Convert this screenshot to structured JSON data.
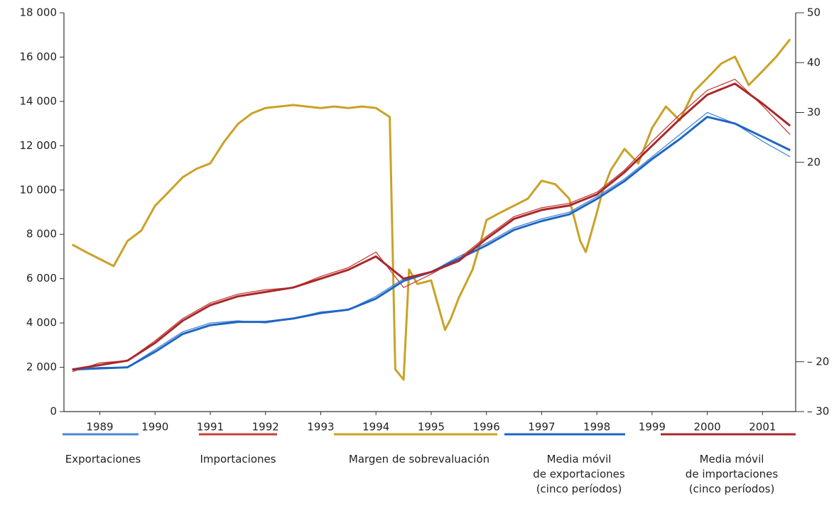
{
  "chart_data": {
    "type": "line",
    "xlim": [
      1988.85,
      2002.1
    ],
    "xticks": [
      {
        "value": 1989.5,
        "label": "1989"
      },
      {
        "value": 1990.5,
        "label": "1990"
      },
      {
        "value": 1991.5,
        "label": "1991"
      },
      {
        "value": 1992.5,
        "label": "1992"
      },
      {
        "value": 1993.5,
        "label": "1993"
      },
      {
        "value": 1994.5,
        "label": "1994"
      },
      {
        "value": 1995.5,
        "label": "1995"
      },
      {
        "value": 1996.5,
        "label": "1996"
      },
      {
        "value": 1997.5,
        "label": "1997"
      },
      {
        "value": 1998.5,
        "label": "1998"
      },
      {
        "value": 1999.5,
        "label": "1999"
      },
      {
        "value": 2000.5,
        "label": "2000"
      },
      {
        "value": 2001.5,
        "label": "2001"
      }
    ],
    "ylim": [
      0,
      18000
    ],
    "yticks": [
      0,
      {
        "value": 2000,
        "label": "2 000"
      },
      {
        "value": 4000,
        "label": "4 000"
      },
      {
        "value": 6000,
        "label": "6 000"
      },
      {
        "value": 8000,
        "label": "8 000"
      },
      {
        "value": 10000,
        "label": "10 000"
      },
      {
        "value": 12000,
        "label": "12 000"
      },
      {
        "value": 14000,
        "label": "14 000"
      },
      {
        "value": 16000,
        "label": "16 000"
      },
      {
        "value": 18000,
        "label": "18 000"
      }
    ],
    "y2lim": [
      -30,
      50
    ],
    "y2ticks": [
      {
        "value": -30,
        "label": "– 30"
      },
      {
        "value": -20,
        "label": "– 20"
      },
      20,
      30,
      40,
      50
    ],
    "x": [
      1989.0,
      1989.5,
      1990.0,
      1990.5,
      1991.0,
      1991.5,
      1992.0,
      1992.5,
      1993.0,
      1993.5,
      1994.0,
      1994.5,
      1995.0,
      1995.5,
      1996.0,
      1996.5,
      1997.0,
      1997.5,
      1998.0,
      1998.5,
      1999.0,
      1999.5,
      2000.0,
      2000.5,
      2001.0,
      2001.5,
      2002.0
    ],
    "series": [
      {
        "name": "Exportaciones",
        "color": "#4a86d6",
        "width": 1.3,
        "values": [
          1900,
          2000,
          2000,
          2800,
          3600,
          4000,
          4100,
          4000,
          4200,
          4500,
          4600,
          5200,
          6000,
          6300,
          7000,
          7600,
          8300,
          8700,
          9000,
          9700,
          10500,
          11500,
          12500,
          13500,
          13000,
          12200,
          11500
        ]
      },
      {
        "name": "Importaciones",
        "color": "#c8403a",
        "width": 1.3,
        "values": [
          1800,
          2200,
          2300,
          3200,
          4200,
          4900,
          5300,
          5500,
          5600,
          6100,
          6500,
          7200,
          5600,
          6200,
          6900,
          7900,
          8800,
          9200,
          9400,
          9900,
          10900,
          12200,
          13400,
          14500,
          15000,
          13800,
          12500
        ]
      },
      {
        "name": "Margen de sobrevaluación",
        "color": "#c9a227",
        "width": 3,
        "axis": "y2",
        "x": [
          1989.0,
          1989.25,
          1989.5,
          1989.75,
          1990.0,
          1990.25,
          1990.5,
          1990.75,
          1991.0,
          1991.25,
          1991.5,
          1991.75,
          1992.0,
          1992.25,
          1992.5,
          1992.75,
          1993.0,
          1993.25,
          1993.5,
          1993.75,
          1994.0,
          1994.25,
          1994.5,
          1994.75,
          1994.85,
          1995.0,
          1995.1,
          1995.25,
          1995.5,
          1995.75,
          1995.85,
          1996.0,
          1996.25,
          1996.4,
          1996.5,
          1996.75,
          1997.0,
          1997.25,
          1997.5,
          1997.75,
          1998.0,
          1998.2,
          1998.3,
          1998.5,
          1998.6,
          1998.75,
          1999.0,
          1999.25,
          1999.5,
          1999.75,
          2000.0,
          2000.25,
          2000.5,
          2000.75,
          2001.0,
          2001.25,
          2001.5,
          2001.75,
          2002.0
        ],
        "values": [
          3.5,
          2.0,
          0.6,
          -0.8,
          4.2,
          6.3,
          11.3,
          14.1,
          17.0,
          18.7,
          19.8,
          24.1,
          27.7,
          29.8,
          30.9,
          31.2,
          31.5,
          31.2,
          30.9,
          31.2,
          30.9,
          31.2,
          30.9,
          29.1,
          -21.5,
          -23.6,
          -1.5,
          -4.4,
          -3.7,
          -13.6,
          -11.5,
          -7.2,
          -1.5,
          4.2,
          8.4,
          9.9,
          11.3,
          12.7,
          16.3,
          15.6,
          12.7,
          4.2,
          2.0,
          9.9,
          14.1,
          18.4,
          22.7,
          19.8,
          26.9,
          31.2,
          28.4,
          34.1,
          36.9,
          39.8,
          41.2,
          35.5,
          38.3,
          41.2,
          44.7
        ]
      },
      {
        "name": "Media móvil\nde exportaciones\n(cinco períodos)",
        "color": "#1f66c4",
        "width": 3,
        "values": [
          1900,
          1950,
          2000,
          2700,
          3500,
          3900,
          4050,
          4050,
          4200,
          4450,
          4600,
          5100,
          5900,
          6300,
          6900,
          7500,
          8200,
          8600,
          8900,
          9600,
          10400,
          11400,
          12300,
          13300,
          13000,
          12400,
          11800
        ]
      },
      {
        "name": "Media móvil\nde importaciones\n(cinco períodos)",
        "color": "#a8282c",
        "width": 3,
        "values": [
          1900,
          2100,
          2300,
          3100,
          4100,
          4800,
          5200,
          5400,
          5600,
          6000,
          6400,
          7000,
          6000,
          6300,
          6800,
          7800,
          8700,
          9100,
          9300,
          9800,
          10800,
          12000,
          13200,
          14300,
          14800,
          13900,
          12900
        ]
      }
    ]
  }
}
